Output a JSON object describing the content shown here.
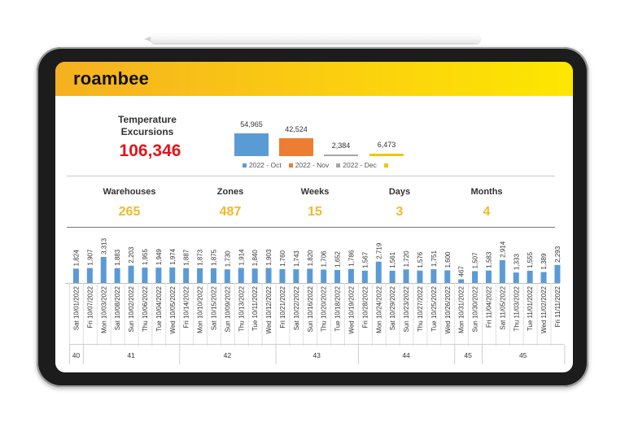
{
  "app": {
    "logo_text": "roambee"
  },
  "kpi": {
    "title": "Temperature Excursions",
    "value": "106,346"
  },
  "monthly": {
    "bars": [
      {
        "label": "2022 - Oct",
        "value": 54965,
        "value_label": "54,965",
        "color": "#5b9bd5"
      },
      {
        "label": "2022 - Nov",
        "value": 42524,
        "value_label": "42,524",
        "color": "#ed7d31"
      },
      {
        "label": "2022 - Dec",
        "value": 2384,
        "value_label": "2,384",
        "color": "#a5a5a5"
      },
      {
        "label": "",
        "value": 6473,
        "value_label": "6,473",
        "color": "#f5c400"
      }
    ]
  },
  "stats": [
    {
      "label": "Warehouses",
      "value": "265"
    },
    {
      "label": "Zones",
      "value": "487"
    },
    {
      "label": "Weeks",
      "value": "15"
    },
    {
      "label": "Days",
      "value": "3"
    },
    {
      "label": "Months",
      "value": "4"
    }
  ],
  "colors": {
    "accent": "#f5b82a",
    "kpi_red": "#e3141b",
    "bar_blue": "#5b9bd5"
  },
  "chart_data": {
    "type": "bar",
    "categories": [
      "Sat 10/01/2022",
      "Fri 10/07/2022",
      "Mon 10/03/2022",
      "Sat 10/08/2022",
      "Sun 10/02/2022",
      "Thu 10/06/2022",
      "Tue 10/04/2022",
      "Wed 10/05/2022",
      "Fri 10/14/2022",
      "Mon 10/10/2022",
      "Sat 10/15/2022",
      "Sun 10/09/2022",
      "Thu 10/13/2022",
      "Tue 10/11/2022",
      "Wed 10/12/2022",
      "Fri 10/21/2022",
      "Sat 10/22/2022",
      "Sun 10/16/2022",
      "Thu 10/20/2022",
      "Tue 10/18/2022",
      "Wed 10/19/2022",
      "Fri 10/28/2022",
      "Mon 10/24/2022",
      "Sat 10/29/2022",
      "Sun 10/23/2022",
      "Thu 10/27/2022",
      "Tue 10/25/2022",
      "Wed 10/26/2022",
      "Mon 10/31/2022",
      "Sun 10/30/2022",
      "Fri 11/04/2022",
      "Sat 11/05/2022",
      "Thu 11/03/2022",
      "Tue 11/01/2022",
      "Wed 11/02/2022",
      "Fri 11/11/2022"
    ],
    "values": [
      1824,
      1907,
      3313,
      1883,
      2203,
      1955,
      1949,
      1974,
      1887,
      1873,
      1875,
      1730,
      1914,
      1840,
      1903,
      1760,
      1743,
      1820,
      1706,
      1652,
      1786,
      1567,
      2719,
      1561,
      1720,
      1576,
      1751,
      1600,
      467,
      1507,
      1583,
      2914,
      1333,
      1555,
      1389,
      2293
    ],
    "value_labels": [
      "1,824",
      "1,907",
      "3,313",
      "1,883",
      "2,203",
      "1,955",
      "1,949",
      "1,974",
      "1,887",
      "1,873",
      "1,875",
      "1,730",
      "1,914",
      "1,840",
      "1,903",
      "1,760",
      "1,743",
      "1,820",
      "1,706",
      "1,652",
      "1,786",
      "1,567",
      "2,719",
      "1,561",
      "1,720",
      "1,576",
      "1,751",
      "1,600",
      "467",
      "1,507",
      "1,583",
      "2,914",
      "1,333",
      "1,555",
      "1,389",
      "2,293"
    ],
    "week_groups": [
      {
        "label": "40",
        "count": 1
      },
      {
        "label": "41",
        "count": 7
      },
      {
        "label": "42",
        "count": 7
      },
      {
        "label": "43",
        "count": 6
      },
      {
        "label": "44",
        "count": 7
      },
      {
        "label": "45",
        "count": 2
      },
      {
        "label": "45",
        "count": 6
      }
    ]
  }
}
